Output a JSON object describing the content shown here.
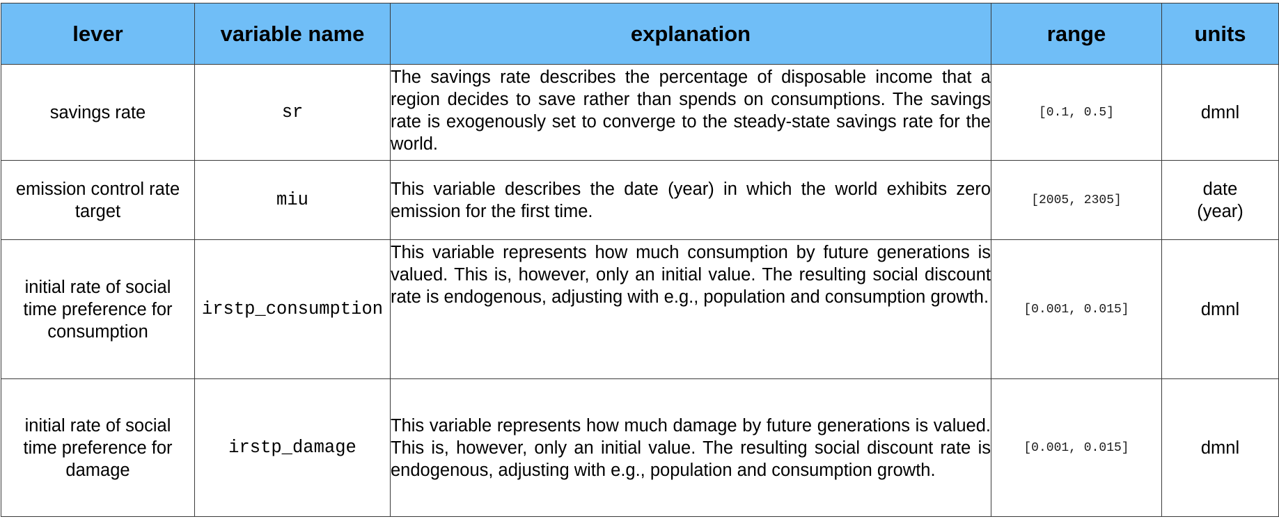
{
  "table": {
    "headers": {
      "lever": "lever",
      "variable_name": "variable name",
      "explanation": "explanation",
      "range": "range",
      "units": "units"
    },
    "rows": [
      {
        "lever": "savings rate",
        "variable_name": "sr",
        "explanation": "The savings rate describes the percentage of disposable income that a region decides to save rather than spends on consumptions. The savings rate is exogenously set to converge to the steady-state savings rate for the world.",
        "range": "[0.1, 0.5]",
        "units": "dmnl"
      },
      {
        "lever": "emission control rate target",
        "variable_name": "miu",
        "explanation": "This variable describes the date (year) in which the world exhibits zero emission for the first time.",
        "range": "[2005, 2305]",
        "units": "date (year)"
      },
      {
        "lever": "initial rate of social time preference for consumption",
        "variable_name": "irstp_consumption",
        "explanation": "This variable represents how much consumption by future generations is valued. This is, however, only an initial value. The resulting social discount rate is endogenous, adjusting with e.g., population and consumption growth.",
        "range": "[0.001, 0.015]",
        "units": "dmnl"
      },
      {
        "lever": "initial rate of social time preference for damage",
        "variable_name": "irstp_damage",
        "explanation": "This variable represents how much damage by future generations is valued. This is, however, only an initial value. The resulting social discount rate is endogenous, adjusting with e.g., population and consumption growth.",
        "range": "[0.001, 0.015]",
        "units": "dmnl"
      }
    ]
  },
  "colors": {
    "header_background": "#70bef7",
    "border": "#3a3a3a"
  }
}
